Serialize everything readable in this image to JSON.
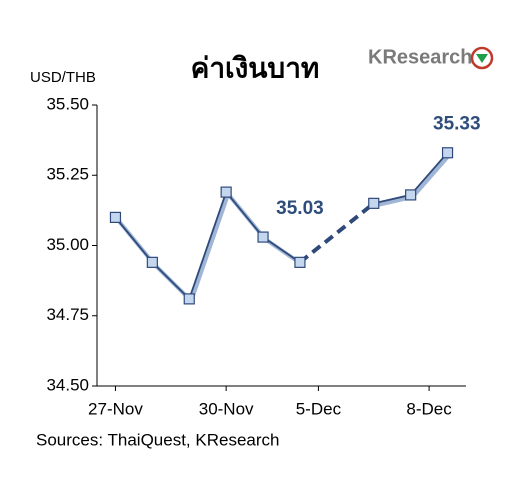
{
  "logo": "KResearch",
  "chart_data": {
    "type": "line",
    "title": "ค่าเงินบาท",
    "y_label": "USD/THB",
    "source": "Sources: ThaiQuest, KResearch",
    "x": [
      0,
      1,
      2,
      3,
      4,
      5,
      6,
      7,
      8,
      9
    ],
    "series": [
      {
        "color": "#2f4a7a",
        "marker": "square",
        "marker_color": "#c5d7ef",
        "values": [
          35.1,
          34.94,
          34.81,
          35.19,
          35.03,
          34.94,
          null,
          35.15,
          35.18,
          35.33
        ]
      }
    ],
    "gap_style": "dashed",
    "xlim": [
      -0.5,
      9.5
    ],
    "xticks": [
      {
        "value": 0,
        "label": "27-Nov"
      },
      {
        "value": 3,
        "label": "30-Nov"
      },
      {
        "value": 5.5,
        "label": "5-Dec"
      },
      {
        "value": 8.5,
        "label": "8-Dec"
      }
    ],
    "ylim": [
      34.5,
      35.5
    ],
    "yticks": [
      {
        "value": 34.5,
        "label": "34.50"
      },
      {
        "value": 34.75,
        "label": "34.75"
      },
      {
        "value": 35,
        "label": "35.00"
      },
      {
        "value": 35.25,
        "label": "35.25"
      },
      {
        "value": 35.5,
        "label": "35.50"
      }
    ],
    "annotations": [
      {
        "text": "35.03",
        "x": 5,
        "y": 35.13
      },
      {
        "text": "35.33",
        "x": 9.25,
        "y": 35.43
      }
    ]
  }
}
